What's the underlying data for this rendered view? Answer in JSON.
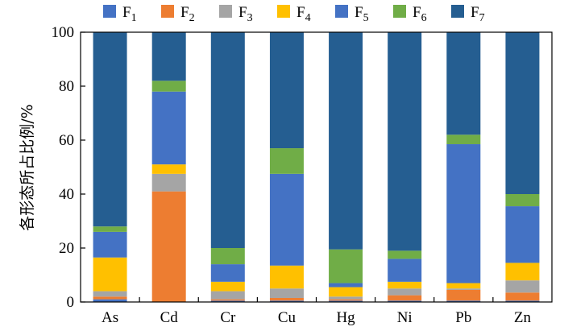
{
  "chart_data": {
    "type": "bar",
    "stacked": true,
    "ylabel": "各形态所占比例/%",
    "ylim": [
      0,
      100
    ],
    "yticks": [
      0,
      20,
      40,
      60,
      80,
      100
    ],
    "grid": false,
    "legend_position": "top",
    "categories": [
      "As",
      "Cd",
      "Cr",
      "Cu",
      "Hg",
      "Ni",
      "Pb",
      "Zn"
    ],
    "series": [
      {
        "name": "F1",
        "color": "#4472c4",
        "values": [
          1.0,
          0.0,
          0.5,
          0.5,
          0.5,
          0.5,
          0.5,
          0.5
        ]
      },
      {
        "name": "F2",
        "color": "#ed7d31",
        "values": [
          1.0,
          41.0,
          0.5,
          1.0,
          0.5,
          2.0,
          4.0,
          3.0
        ]
      },
      {
        "name": "F3",
        "color": "#a5a5a5",
        "values": [
          2.0,
          6.5,
          3.0,
          3.5,
          1.0,
          2.5,
          0.5,
          4.5
        ]
      },
      {
        "name": "F4",
        "color": "#ffc000",
        "values": [
          12.5,
          3.5,
          3.5,
          8.5,
          3.5,
          2.5,
          2.0,
          6.5
        ]
      },
      {
        "name": "F5",
        "color": "#4472c4",
        "values": [
          9.5,
          27.0,
          6.5,
          34.0,
          1.5,
          8.5,
          51.5,
          21.0
        ]
      },
      {
        "name": "F6",
        "color": "#70ad47",
        "values": [
          2.0,
          4.0,
          6.0,
          9.5,
          12.5,
          3.0,
          3.5,
          4.5
        ]
      },
      {
        "name": "F7",
        "color": "#255e91",
        "values": [
          72.0,
          18.0,
          80.0,
          43.0,
          80.5,
          81.0,
          38.0,
          60.0
        ]
      }
    ],
    "legend": [
      {
        "base": "F",
        "sub": "1"
      },
      {
        "base": "F",
        "sub": "2"
      },
      {
        "base": "F",
        "sub": "3"
      },
      {
        "base": "F",
        "sub": "4"
      },
      {
        "base": "F",
        "sub": "5"
      },
      {
        "base": "F",
        "sub": "6"
      },
      {
        "base": "F",
        "sub": "7"
      }
    ]
  }
}
